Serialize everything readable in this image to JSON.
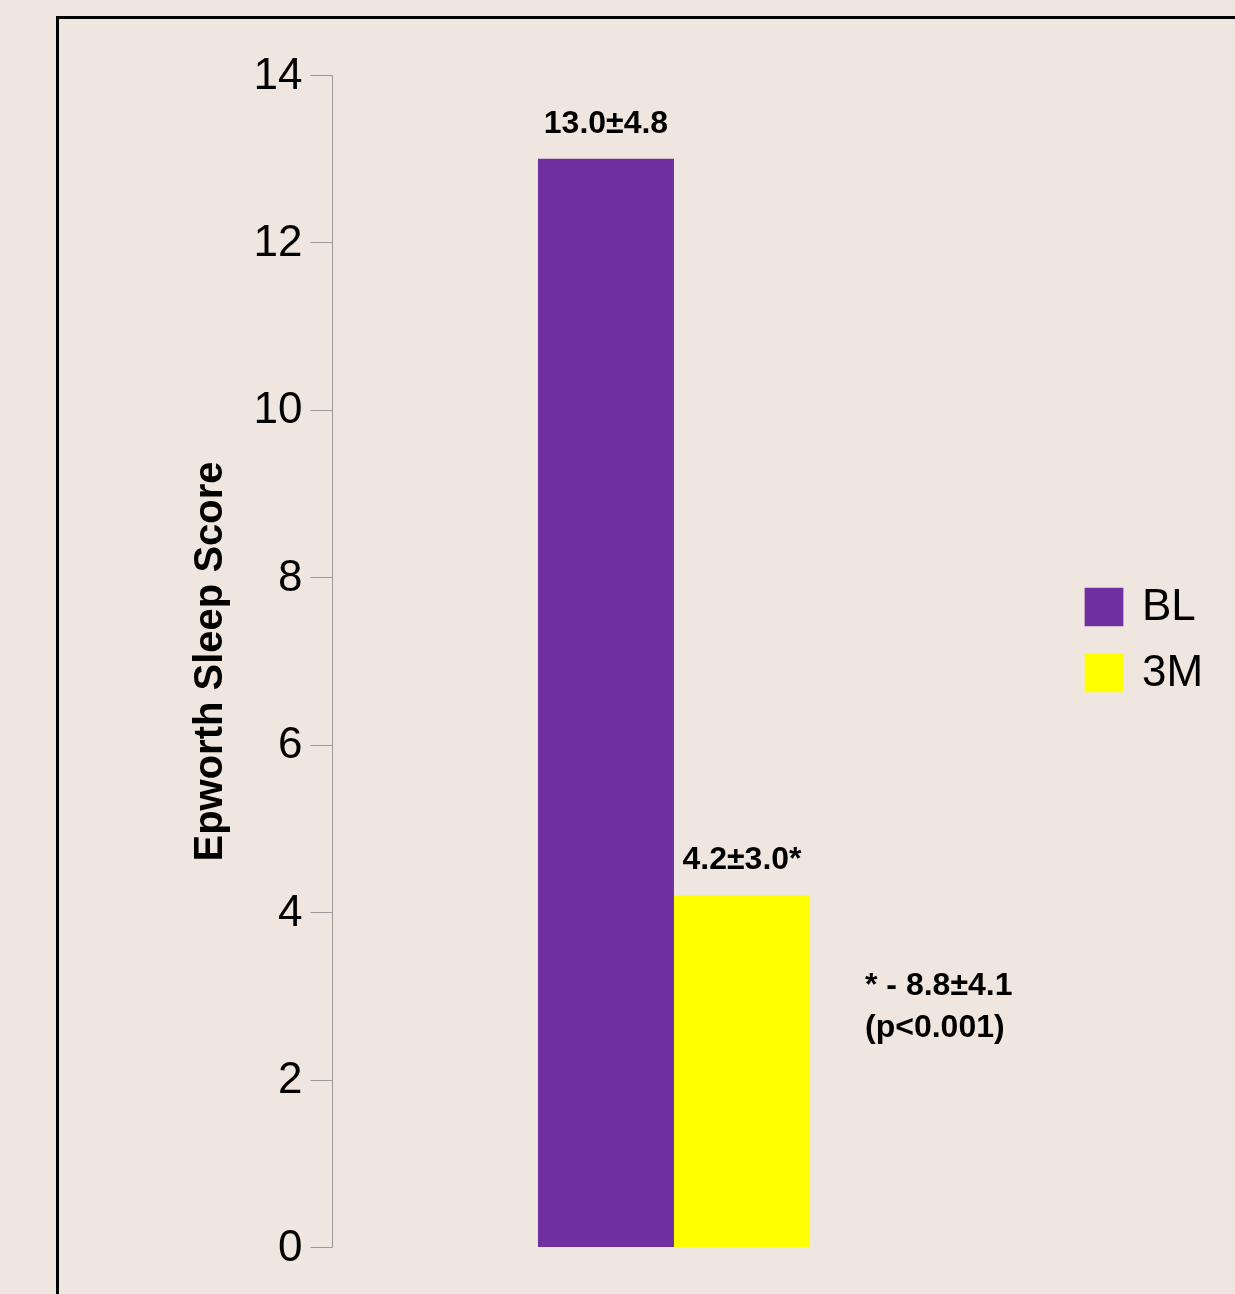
{
  "chart_data": {
    "type": "bar",
    "ylabel": "Epworth Sleep Score",
    "categories": [
      null
    ],
    "series": [
      {
        "name": "BL",
        "color": "#7030a0",
        "values": [
          13.0
        ],
        "value_labels": [
          "13.0±4.8"
        ]
      },
      {
        "name": "3M",
        "color": "#ffff00",
        "values": [
          4.2
        ],
        "value_labels": [
          "4.2±3.0*"
        ]
      }
    ],
    "ylim": [
      0,
      14
    ],
    "yticks": [
      0,
      2,
      4,
      6,
      8,
      10,
      12,
      14
    ],
    "grid": false,
    "legend": "right",
    "tick_labels": "y",
    "annotations": [
      "* - 8.8±4.1\n(p<0.001)"
    ]
  }
}
